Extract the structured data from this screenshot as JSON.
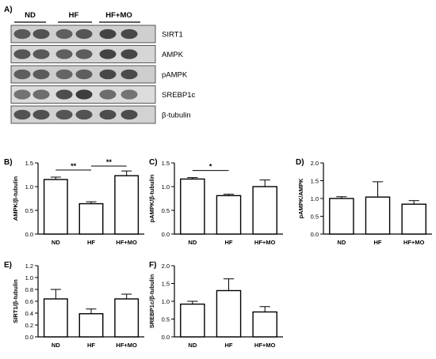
{
  "figure": {
    "panel_a_label": "A)",
    "blot_groups": [
      "ND",
      "HF",
      "HF+MO"
    ],
    "blot_labels": [
      "SIRT1",
      "AMPK",
      "pAMPK",
      "SREBP1c",
      "β-tubulin"
    ]
  },
  "chart_data": [
    {
      "panel": "B)",
      "type": "bar",
      "categories": [
        "ND",
        "HF",
        "HF+MO"
      ],
      "values": [
        1.15,
        0.64,
        1.23
      ],
      "errors": [
        0.05,
        0.04,
        0.1
      ],
      "ylabel": "AMPK/β-tubulin",
      "ylim": [
        0,
        1.5
      ],
      "yticks": [
        "0.0",
        "0.5",
        "1.0",
        "1.5"
      ],
      "significance": [
        {
          "from": 0,
          "to": 1,
          "label": "**"
        },
        {
          "from": 1,
          "to": 2,
          "label": "**"
        }
      ]
    },
    {
      "panel": "C)",
      "type": "bar",
      "categories": [
        "ND",
        "HF",
        "HF+MO"
      ],
      "values": [
        1.16,
        0.81,
        1.0
      ],
      "errors": [
        0.03,
        0.03,
        0.14
      ],
      "ylabel": "pAMPK/β-tubulin",
      "ylim": [
        0,
        1.5
      ],
      "yticks": [
        "0.0",
        "0.5",
        "1.0",
        "1.5"
      ],
      "significance": [
        {
          "from": 0,
          "to": 1,
          "label": "*"
        }
      ]
    },
    {
      "panel": "D)",
      "type": "bar",
      "categories": [
        "ND",
        "HF",
        "HF+MO"
      ],
      "values": [
        1.0,
        1.04,
        0.84
      ],
      "errors": [
        0.05,
        0.43,
        0.1
      ],
      "ylabel": "pAMPK/AMPK",
      "ylim": [
        0,
        2.0
      ],
      "yticks": [
        "0.0",
        "0.5",
        "1.0",
        "1.5",
        "2.0"
      ],
      "significance": []
    },
    {
      "panel": "E)",
      "type": "bar",
      "categories": [
        "ND",
        "HF",
        "HF+MO"
      ],
      "values": [
        0.64,
        0.39,
        0.64
      ],
      "errors": [
        0.16,
        0.08,
        0.08
      ],
      "ylabel": "SIRT1/β-tubulin",
      "ylim": [
        0,
        1.2
      ],
      "yticks": [
        "0.0",
        "0.2",
        "0.4",
        "0.6",
        "0.8",
        "1.0",
        "1.2"
      ],
      "significance": []
    },
    {
      "panel": "F)",
      "type": "bar",
      "categories": [
        "ND",
        "HF",
        "HF+MO"
      ],
      "values": [
        0.92,
        1.3,
        0.7
      ],
      "errors": [
        0.08,
        0.33,
        0.15
      ],
      "ylabel": "SREBP1c/β-tubulin",
      "ylim": [
        0,
        2.0
      ],
      "yticks": [
        "0.0",
        "0.5",
        "1.0",
        "1.5",
        "2.0"
      ],
      "significance": []
    }
  ]
}
